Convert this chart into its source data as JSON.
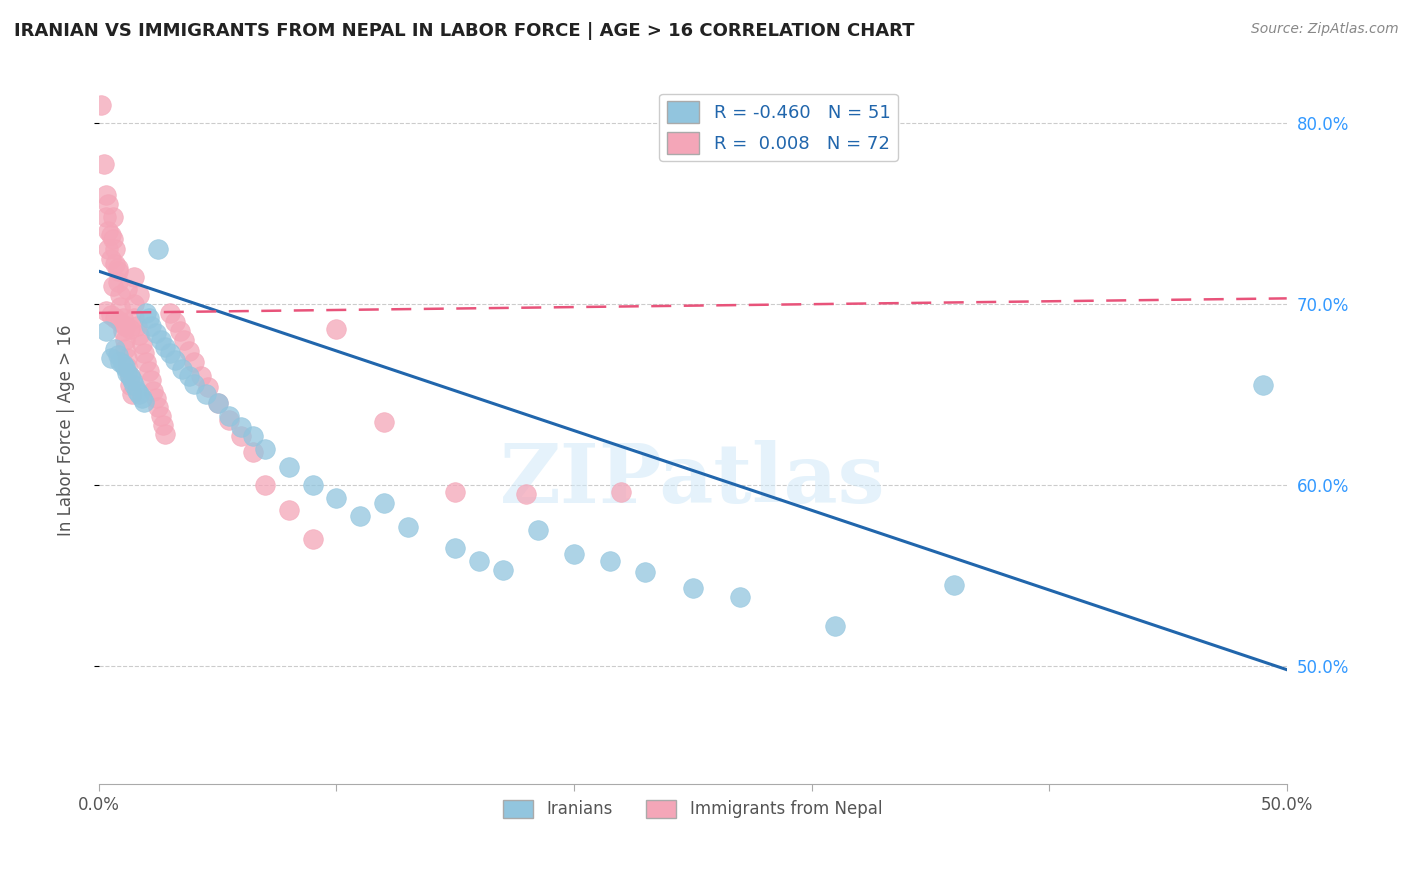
{
  "title": "IRANIAN VS IMMIGRANTS FROM NEPAL IN LABOR FORCE | AGE > 16 CORRELATION CHART",
  "source": "Source: ZipAtlas.com",
  "ylabel": "In Labor Force | Age > 16",
  "x_min": 0.0,
  "x_max": 0.5,
  "y_min": 0.435,
  "y_max": 0.825,
  "x_ticks": [
    0.0,
    0.1,
    0.2,
    0.3,
    0.4,
    0.5
  ],
  "x_tick_labels_show": [
    "0.0%",
    "",
    "",
    "",
    "",
    "50.0%"
  ],
  "y_ticks": [
    0.5,
    0.6,
    0.7,
    0.8
  ],
  "y_tick_labels": [
    "50.0%",
    "60.0%",
    "70.0%",
    "80.0%"
  ],
  "legend_r_iranians": "-0.460",
  "legend_n_iranians": "51",
  "legend_r_nepal": "0.008",
  "legend_n_nepal": "72",
  "blue_color": "#92c5de",
  "pink_color": "#f4a6b8",
  "blue_line_color": "#2166ac",
  "pink_line_color": "#e8537a",
  "watermark": "ZIPatlas",
  "blue_trend_x0": 0.0,
  "blue_trend_y0": 0.718,
  "blue_trend_x1": 0.5,
  "blue_trend_y1": 0.498,
  "pink_trend_x0": 0.0,
  "pink_trend_y0": 0.695,
  "pink_trend_x1": 0.5,
  "pink_trend_y1": 0.703,
  "blue_scatter_x": [
    0.003,
    0.005,
    0.007,
    0.008,
    0.009,
    0.01,
    0.011,
    0.012,
    0.013,
    0.014,
    0.015,
    0.016,
    0.017,
    0.018,
    0.019,
    0.02,
    0.021,
    0.022,
    0.024,
    0.026,
    0.028,
    0.03,
    0.032,
    0.035,
    0.038,
    0.04,
    0.045,
    0.05,
    0.055,
    0.06,
    0.065,
    0.07,
    0.08,
    0.09,
    0.1,
    0.11,
    0.12,
    0.13,
    0.15,
    0.16,
    0.17,
    0.185,
    0.2,
    0.215,
    0.23,
    0.25,
    0.27,
    0.31,
    0.36,
    0.49,
    0.025
  ],
  "blue_scatter_y": [
    0.685,
    0.67,
    0.675,
    0.672,
    0.668,
    0.667,
    0.665,
    0.662,
    0.66,
    0.658,
    0.655,
    0.652,
    0.65,
    0.648,
    0.646,
    0.695,
    0.692,
    0.688,
    0.684,
    0.68,
    0.676,
    0.673,
    0.669,
    0.664,
    0.66,
    0.656,
    0.65,
    0.645,
    0.638,
    0.632,
    0.627,
    0.62,
    0.61,
    0.6,
    0.593,
    0.583,
    0.59,
    0.577,
    0.565,
    0.558,
    0.553,
    0.575,
    0.562,
    0.558,
    0.552,
    0.543,
    0.538,
    0.522,
    0.545,
    0.655,
    0.73
  ],
  "pink_scatter_x": [
    0.001,
    0.002,
    0.003,
    0.003,
    0.004,
    0.004,
    0.005,
    0.005,
    0.006,
    0.006,
    0.007,
    0.007,
    0.008,
    0.008,
    0.009,
    0.009,
    0.01,
    0.01,
    0.011,
    0.011,
    0.012,
    0.012,
    0.013,
    0.013,
    0.014,
    0.015,
    0.015,
    0.016,
    0.017,
    0.018,
    0.019,
    0.02,
    0.021,
    0.022,
    0.023,
    0.024,
    0.025,
    0.026,
    0.027,
    0.028,
    0.03,
    0.032,
    0.034,
    0.036,
    0.038,
    0.04,
    0.043,
    0.046,
    0.05,
    0.055,
    0.06,
    0.065,
    0.07,
    0.08,
    0.09,
    0.1,
    0.12,
    0.15,
    0.18,
    0.22,
    0.003,
    0.005,
    0.007,
    0.009,
    0.011,
    0.013,
    0.006,
    0.004,
    0.015,
    0.008,
    0.012,
    0.017
  ],
  "pink_scatter_y": [
    0.81,
    0.777,
    0.76,
    0.748,
    0.74,
    0.73,
    0.738,
    0.725,
    0.748,
    0.736,
    0.73,
    0.722,
    0.718,
    0.712,
    0.705,
    0.698,
    0.692,
    0.685,
    0.68,
    0.675,
    0.67,
    0.665,
    0.66,
    0.655,
    0.65,
    0.7,
    0.692,
    0.688,
    0.683,
    0.678,
    0.673,
    0.668,
    0.663,
    0.658,
    0.652,
    0.648,
    0.643,
    0.638,
    0.633,
    0.628,
    0.695,
    0.69,
    0.685,
    0.68,
    0.674,
    0.668,
    0.66,
    0.654,
    0.645,
    0.636,
    0.627,
    0.618,
    0.6,
    0.586,
    0.57,
    0.686,
    0.635,
    0.596,
    0.595,
    0.596,
    0.696,
    0.694,
    0.692,
    0.69,
    0.688,
    0.686,
    0.71,
    0.755,
    0.715,
    0.72,
    0.708,
    0.705
  ]
}
